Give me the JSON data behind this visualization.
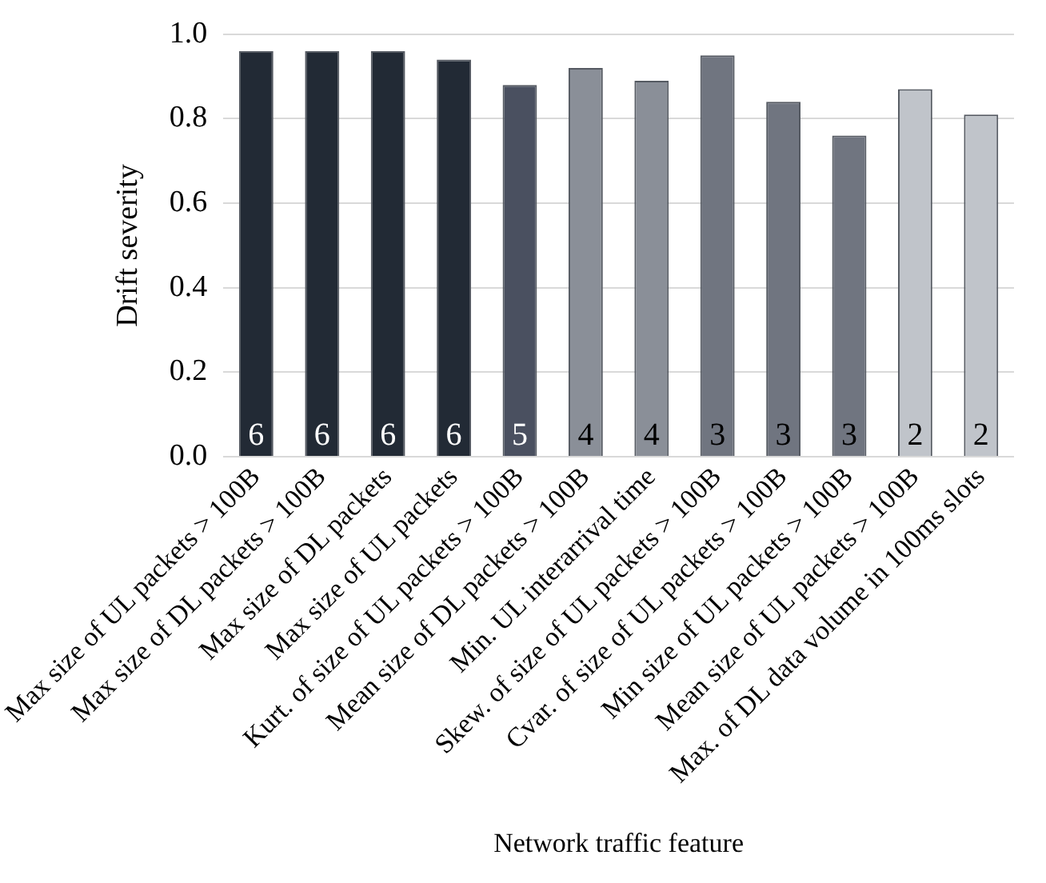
{
  "chart_data": {
    "type": "bar",
    "xlabel": "Network traffic feature",
    "ylabel": "Drift severity",
    "categories": [
      "Max size of UL packets > 100B",
      "Max size of DL packets > 100B",
      "Max size of DL packets",
      "Max size of UL packets",
      "Kurt. of size of UL packets > 100B",
      "Mean size of DL packets > 100B",
      "Min. UL interarrival time",
      "Skew. of size of UL packets > 100B",
      "Cvar. of size of UL packets > 100B",
      "Min size of UL packets > 100B",
      "Mean size of UL packets > 100B",
      "Max. of DL data volume in 100ms slots"
    ],
    "values": [
      0.96,
      0.96,
      0.96,
      0.94,
      0.88,
      0.92,
      0.89,
      0.95,
      0.84,
      0.76,
      0.87,
      0.81
    ],
    "colors": [
      "#222a35",
      "#222a35",
      "#222a35",
      "#222a35",
      "#4a5060",
      "#8a8f98",
      "#8a8f98",
      "#707580",
      "#707580",
      "#707580",
      "#c0c4ca",
      "#c0c4ca"
    ],
    "ylim": [
      0,
      1
    ],
    "yticks": [
      {
        "value": 0,
        "label": "0.0"
      },
      {
        "value": 0.2,
        "label": "0.2"
      },
      {
        "value": 0.4,
        "label": "0.4"
      },
      {
        "value": 0.6,
        "label": "0.6"
      },
      {
        "value": 0.8,
        "label": "0.8"
      },
      {
        "value": 1,
        "label": "1.0"
      }
    ],
    "grid": "y",
    "legend": false,
    "annotations": [
      "6",
      "6",
      "6",
      "6",
      "5",
      "4",
      "4",
      "3",
      "3",
      "3",
      "2",
      "2"
    ]
  }
}
